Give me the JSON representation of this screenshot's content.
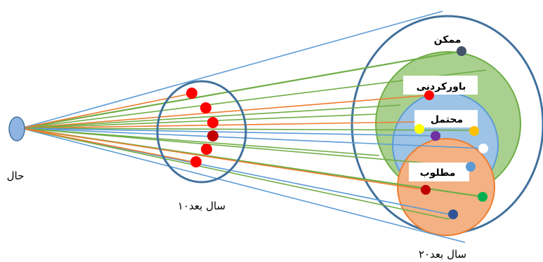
{
  "labels": {
    "present": "حال",
    "ten_years": "۱۰سال بعد",
    "twenty_years": "۲۰سال بعد",
    "possible": "ممکن",
    "plausible": "باورکردنی",
    "probable": "محتمل",
    "preferable": "مطلوب"
  },
  "colors": {
    "outer_ellipse": "#41719c",
    "plausible_fill": "#a9d08e",
    "plausible_stroke": "#70ad47",
    "probable_fill": "#9dc3e6",
    "probable_stroke": "#5b9bd5",
    "preferable_fill": "#f4b183",
    "preferable_stroke": "#ed7d31",
    "line_blue": "#5b9bd5",
    "line_green": "#70ad47",
    "line_orange": "#ed7d31",
    "dot_red": "#ff0000",
    "dot_dark_red": "#c00000",
    "dot_navy": "#44546a",
    "dot_yellow": "#ffff00",
    "dot_purple": "#7030a0",
    "dot_orange": "#ffc000",
    "dot_white": "#ffffff",
    "dot_lightblue": "#5b9bd5",
    "dot_green": "#00b050",
    "dot_blue": "#2f5597"
  }
}
